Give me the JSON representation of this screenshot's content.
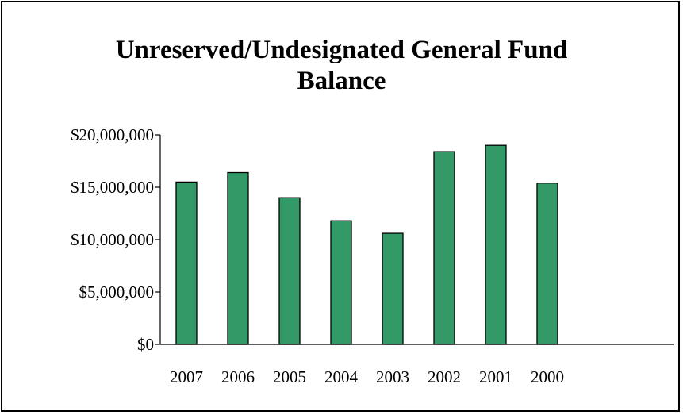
{
  "chart_data": {
    "type": "bar",
    "title_lines": [
      "Unreserved/Undesignated General Fund",
      "Balance"
    ],
    "categories": [
      "2007",
      "2006",
      "2005",
      "2004",
      "2003",
      "2002",
      "2001",
      "2000"
    ],
    "values": [
      15500000,
      16400000,
      14000000,
      11800000,
      10600000,
      18400000,
      19000000,
      15400000
    ],
    "xlabel": "",
    "ylabel": "",
    "ylim": [
      0,
      20000000
    ],
    "y_ticks": [
      0,
      5000000,
      10000000,
      15000000,
      20000000
    ],
    "y_tick_labels": [
      "$0",
      "$5,000,000",
      "$10,000,000",
      "$15,000,000",
      "$20,000,000"
    ],
    "grid": false,
    "legend": "none",
    "bar_color": "#339966"
  }
}
